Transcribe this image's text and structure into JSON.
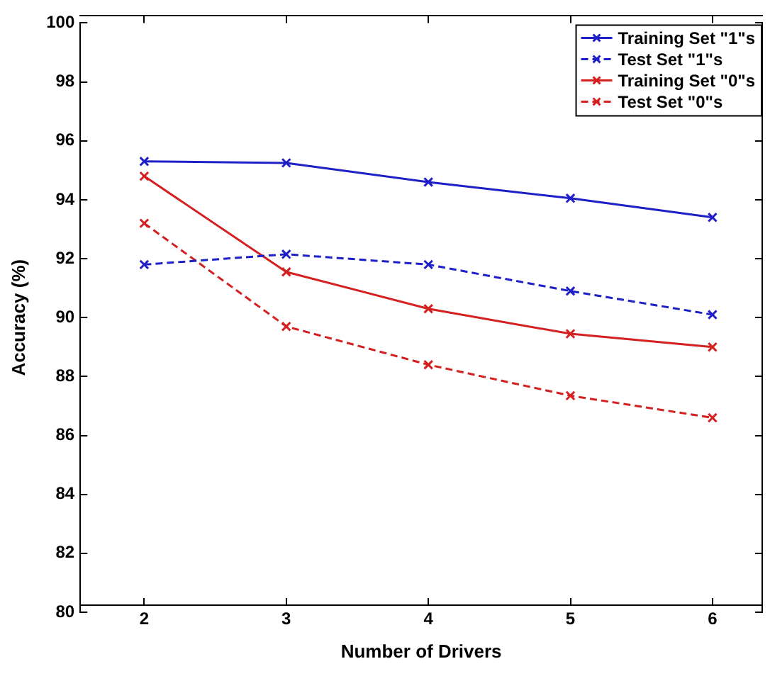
{
  "chart_data": {
    "type": "line",
    "xlabel": "Number of Drivers",
    "ylabel": "Accuracy (%)",
    "x": [
      2,
      3,
      4,
      5,
      6
    ],
    "series": [
      {
        "name": "Training Set \"1\"s",
        "color": "#1f1fc8",
        "line_style": "solid",
        "values": [
          95.3,
          95.25,
          94.6,
          94.05,
          93.4
        ]
      },
      {
        "name": "Test Set \"1\"s",
        "color": "#1f1fc8",
        "line_style": "dashed",
        "values": [
          91.8,
          92.15,
          91.8,
          90.9,
          90.1
        ]
      },
      {
        "name": "Training Set \"0\"s",
        "color": "#d42020",
        "line_style": "solid",
        "values": [
          94.8,
          91.55,
          90.3,
          89.45,
          89.0
        ]
      },
      {
        "name": "Test Set \"0\"s",
        "color": "#d42020",
        "line_style": "dashed",
        "values": [
          93.2,
          89.7,
          88.4,
          87.35,
          86.6
        ]
      }
    ],
    "xlim": [
      1.55,
      6.35
    ],
    "xticks": [
      2,
      3,
      4,
      5,
      6
    ],
    "ylim": [
      80,
      100
    ],
    "yticks": [
      80,
      82,
      84,
      86,
      88,
      90,
      92,
      94,
      96,
      98,
      100
    ],
    "grid": false,
    "legend": "top right",
    "marker": "cross"
  }
}
